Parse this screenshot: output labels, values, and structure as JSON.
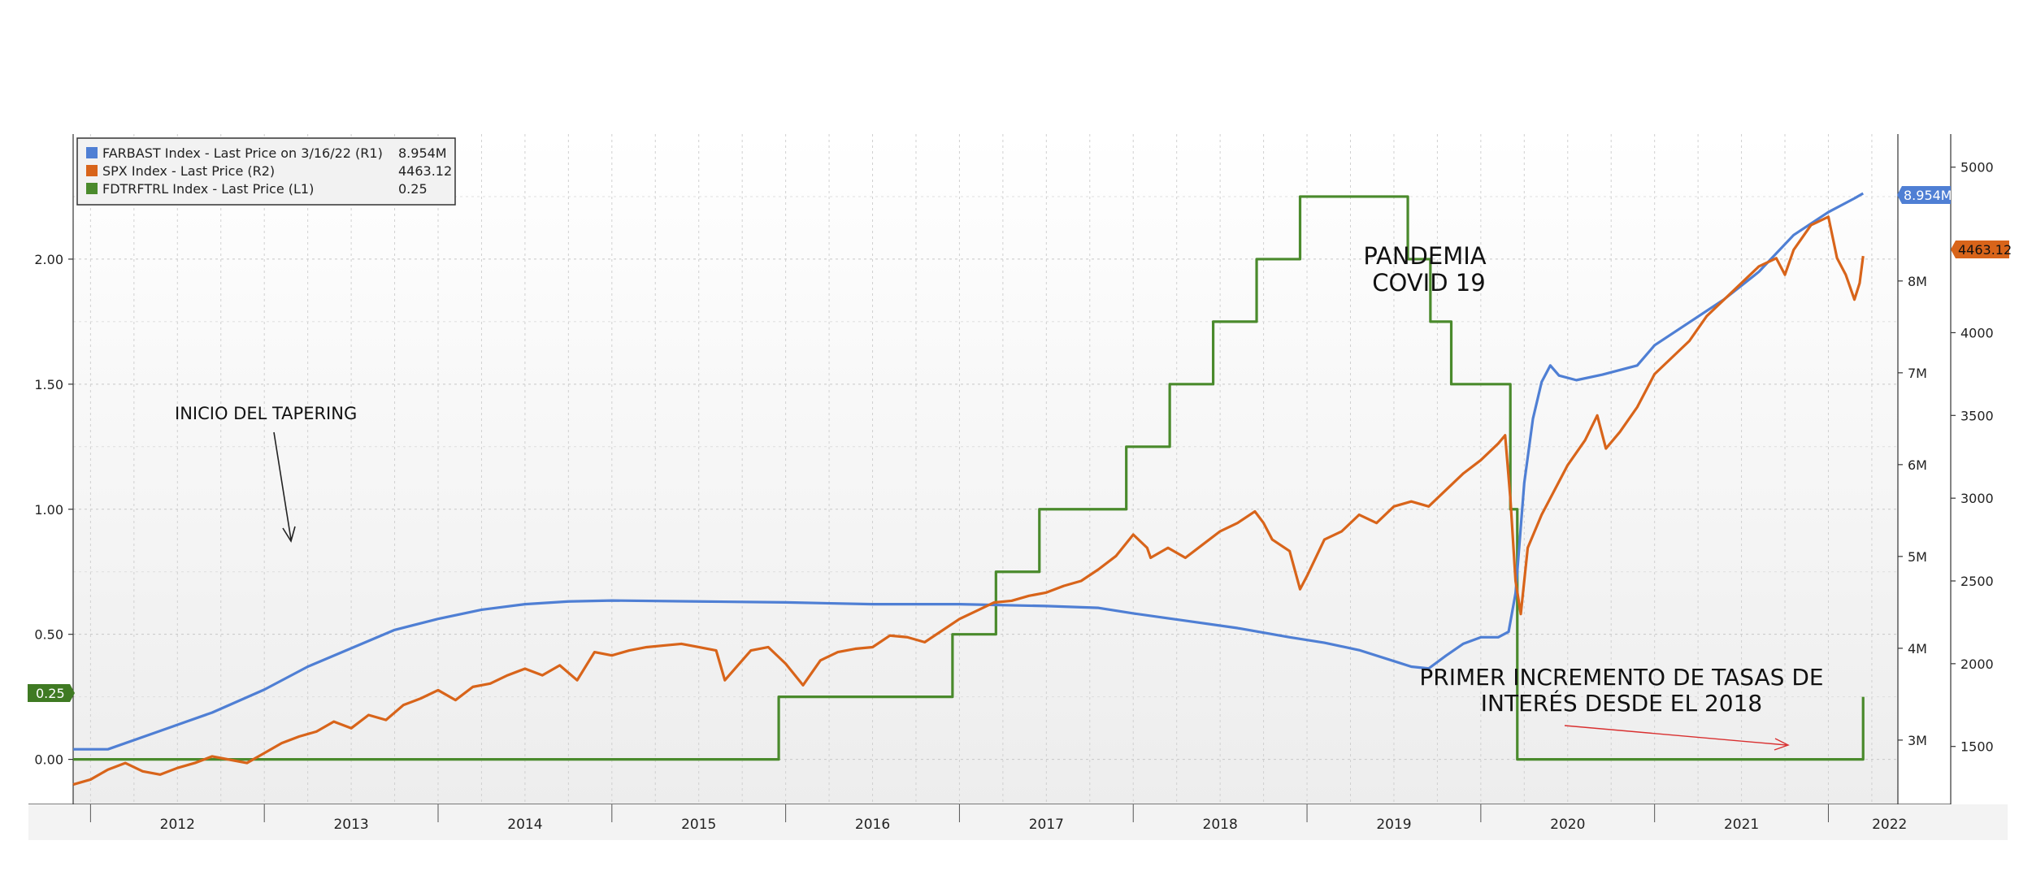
{
  "chart_data": {
    "type": "line",
    "grid": true,
    "legend_placement": "top-left",
    "x_axis": {
      "range": [
        2011.9,
        2022.4
      ],
      "tick_labels": [
        "2012",
        "2013",
        "2014",
        "2015",
        "2016",
        "2017",
        "2018",
        "2019",
        "2020",
        "2021",
        "2022"
      ]
    },
    "axes": {
      "L1": {
        "range": [
          -0.18,
          2.5
        ],
        "tick_values": [
          0.0,
          0.5,
          1.0,
          1.5,
          2.0
        ],
        "tick_labels": [
          "0.00",
          "0.50",
          "1.00",
          "1.50",
          "2.00"
        ]
      },
      "R1": {
        "range": [
          2.3,
          9.6
        ],
        "tick_values": [
          3,
          4,
          5,
          6,
          7,
          8
        ],
        "tick_labels": [
          "3M",
          "4M",
          "5M",
          "6M",
          "7M",
          "8M"
        ]
      },
      "R2": {
        "range": [
          1150,
          5200
        ],
        "tick_values": [
          1500,
          2000,
          2500,
          3000,
          3500,
          4000,
          4500,
          5000
        ],
        "tick_labels": [
          "1500",
          "2000",
          "2500",
          "3000",
          "3500",
          "4000",
          "4500",
          "5000"
        ]
      }
    },
    "legend": [
      {
        "label": "FARBAST Index - Last Price on 3/16/22 (R1)",
        "value": "8.954M",
        "color": "#4f7fd4"
      },
      {
        "label": "SPX Index - Last Price (R2)",
        "value": "4463.12",
        "color": "#d8641a"
      },
      {
        "label": "FDTRFTRL Index - Last Price (L1)",
        "value": "0.25",
        "color": "#4a8a2c"
      }
    ],
    "last_value_labels": {
      "farbast": "8.954M",
      "spx": "4463.12",
      "fdtr": "0.25"
    },
    "annotations": {
      "tapering": "INICIO DEL TAPERING",
      "pandemic_line1": "PANDEMIA",
      "pandemic_line2": "COVID 19",
      "hike_line1": "PRIMER INCREMENTO DE TASAS DE",
      "hike_line2": "INTERÉS DESDE EL 2018"
    },
    "series": [
      {
        "name": "FDTRFTRL Index - Last Price (L1)",
        "axis": "L1",
        "color": "#4a8a2c",
        "step": true,
        "points": [
          [
            2011.9,
            0.0
          ],
          [
            2015.96,
            0.25
          ],
          [
            2016.96,
            0.5
          ],
          [
            2017.21,
            0.75
          ],
          [
            2017.46,
            1.0
          ],
          [
            2017.96,
            1.25
          ],
          [
            2018.21,
            1.5
          ],
          [
            2018.46,
            1.75
          ],
          [
            2018.71,
            2.0
          ],
          [
            2018.96,
            2.25
          ],
          [
            2019.58,
            2.0
          ],
          [
            2019.71,
            1.75
          ],
          [
            2019.83,
            1.5
          ],
          [
            2020.17,
            1.0
          ],
          [
            2020.21,
            0.0
          ],
          [
            2022.2,
            0.25
          ]
        ]
      },
      {
        "name": "FARBAST Index - Last Price on 3/16/22 (R1)",
        "axis": "R1",
        "color": "#4f7fd4",
        "points": [
          [
            2011.9,
            2.9
          ],
          [
            2012.1,
            2.9
          ],
          [
            2012.4,
            3.1
          ],
          [
            2012.7,
            3.3
          ],
          [
            2013.0,
            3.55
          ],
          [
            2013.25,
            3.8
          ],
          [
            2013.5,
            4.0
          ],
          [
            2013.75,
            4.2
          ],
          [
            2014.0,
            4.32
          ],
          [
            2014.25,
            4.42
          ],
          [
            2014.5,
            4.48
          ],
          [
            2014.75,
            4.51
          ],
          [
            2015.0,
            4.52
          ],
          [
            2015.5,
            4.51
          ],
          [
            2016.0,
            4.5
          ],
          [
            2016.5,
            4.48
          ],
          [
            2017.0,
            4.48
          ],
          [
            2017.5,
            4.46
          ],
          [
            2017.8,
            4.44
          ],
          [
            2018.0,
            4.38
          ],
          [
            2018.3,
            4.3
          ],
          [
            2018.6,
            4.22
          ],
          [
            2018.9,
            4.12
          ],
          [
            2019.1,
            4.06
          ],
          [
            2019.3,
            3.98
          ],
          [
            2019.5,
            3.86
          ],
          [
            2019.6,
            3.8
          ],
          [
            2019.7,
            3.78
          ],
          [
            2019.8,
            3.92
          ],
          [
            2019.9,
            4.05
          ],
          [
            2020.0,
            4.12
          ],
          [
            2020.1,
            4.12
          ],
          [
            2020.16,
            4.18
          ],
          [
            2020.2,
            4.6
          ],
          [
            2020.25,
            5.8
          ],
          [
            2020.3,
            6.5
          ],
          [
            2020.35,
            6.9
          ],
          [
            2020.4,
            7.08
          ],
          [
            2020.45,
            6.97
          ],
          [
            2020.55,
            6.92
          ],
          [
            2020.7,
            6.98
          ],
          [
            2020.9,
            7.08
          ],
          [
            2021.0,
            7.3
          ],
          [
            2021.2,
            7.55
          ],
          [
            2021.4,
            7.8
          ],
          [
            2021.6,
            8.1
          ],
          [
            2021.8,
            8.5
          ],
          [
            2022.0,
            8.75
          ],
          [
            2022.15,
            8.9
          ],
          [
            2022.2,
            8.954
          ]
        ]
      },
      {
        "name": "SPX Index - Last Price (R2)",
        "axis": "R2",
        "color": "#d8641a",
        "points": [
          [
            2011.9,
            1270
          ],
          [
            2012.0,
            1300
          ],
          [
            2012.1,
            1360
          ],
          [
            2012.2,
            1400
          ],
          [
            2012.3,
            1350
          ],
          [
            2012.4,
            1330
          ],
          [
            2012.5,
            1370
          ],
          [
            2012.6,
            1400
          ],
          [
            2012.7,
            1440
          ],
          [
            2012.8,
            1420
          ],
          [
            2012.9,
            1400
          ],
          [
            2013.0,
            1460
          ],
          [
            2013.1,
            1520
          ],
          [
            2013.2,
            1560
          ],
          [
            2013.3,
            1590
          ],
          [
            2013.4,
            1650
          ],
          [
            2013.5,
            1610
          ],
          [
            2013.6,
            1690
          ],
          [
            2013.7,
            1660
          ],
          [
            2013.8,
            1750
          ],
          [
            2013.9,
            1790
          ],
          [
            2014.0,
            1840
          ],
          [
            2014.1,
            1780
          ],
          [
            2014.2,
            1860
          ],
          [
            2014.3,
            1880
          ],
          [
            2014.4,
            1930
          ],
          [
            2014.5,
            1970
          ],
          [
            2014.6,
            1930
          ],
          [
            2014.7,
            1990
          ],
          [
            2014.8,
            1900
          ],
          [
            2014.9,
            2070
          ],
          [
            2015.0,
            2050
          ],
          [
            2015.1,
            2080
          ],
          [
            2015.2,
            2100
          ],
          [
            2015.3,
            2110
          ],
          [
            2015.4,
            2120
          ],
          [
            2015.5,
            2100
          ],
          [
            2015.6,
            2080
          ],
          [
            2015.65,
            1900
          ],
          [
            2015.8,
            2080
          ],
          [
            2015.9,
            2100
          ],
          [
            2016.0,
            2000
          ],
          [
            2016.1,
            1870
          ],
          [
            2016.2,
            2020
          ],
          [
            2016.3,
            2070
          ],
          [
            2016.4,
            2090
          ],
          [
            2016.5,
            2100
          ],
          [
            2016.6,
            2170
          ],
          [
            2016.7,
            2160
          ],
          [
            2016.8,
            2130
          ],
          [
            2016.9,
            2200
          ],
          [
            2017.0,
            2270
          ],
          [
            2017.1,
            2320
          ],
          [
            2017.2,
            2370
          ],
          [
            2017.3,
            2380
          ],
          [
            2017.4,
            2410
          ],
          [
            2017.5,
            2430
          ],
          [
            2017.6,
            2470
          ],
          [
            2017.7,
            2500
          ],
          [
            2017.8,
            2570
          ],
          [
            2017.9,
            2650
          ],
          [
            2018.0,
            2780
          ],
          [
            2018.08,
            2700
          ],
          [
            2018.1,
            2640
          ],
          [
            2018.2,
            2700
          ],
          [
            2018.3,
            2640
          ],
          [
            2018.4,
            2720
          ],
          [
            2018.5,
            2800
          ],
          [
            2018.6,
            2850
          ],
          [
            2018.7,
            2920
          ],
          [
            2018.75,
            2850
          ],
          [
            2018.8,
            2750
          ],
          [
            2018.9,
            2680
          ],
          [
            2018.96,
            2450
          ],
          [
            2019.0,
            2530
          ],
          [
            2019.1,
            2750
          ],
          [
            2019.2,
            2800
          ],
          [
            2019.3,
            2900
          ],
          [
            2019.4,
            2850
          ],
          [
            2019.5,
            2950
          ],
          [
            2019.6,
            2980
          ],
          [
            2019.7,
            2950
          ],
          [
            2019.8,
            3050
          ],
          [
            2019.9,
            3150
          ],
          [
            2020.0,
            3230
          ],
          [
            2020.1,
            3330
          ],
          [
            2020.14,
            3380
          ],
          [
            2020.17,
            3000
          ],
          [
            2020.2,
            2500
          ],
          [
            2020.23,
            2300
          ],
          [
            2020.27,
            2700
          ],
          [
            2020.35,
            2900
          ],
          [
            2020.45,
            3100
          ],
          [
            2020.5,
            3200
          ],
          [
            2020.6,
            3350
          ],
          [
            2020.67,
            3500
          ],
          [
            2020.72,
            3300
          ],
          [
            2020.8,
            3400
          ],
          [
            2020.9,
            3550
          ],
          [
            2021.0,
            3750
          ],
          [
            2021.1,
            3850
          ],
          [
            2021.2,
            3950
          ],
          [
            2021.3,
            4100
          ],
          [
            2021.4,
            4200
          ],
          [
            2021.5,
            4300
          ],
          [
            2021.6,
            4400
          ],
          [
            2021.7,
            4450
          ],
          [
            2021.75,
            4350
          ],
          [
            2021.8,
            4500
          ],
          [
            2021.9,
            4650
          ],
          [
            2022.0,
            4700
          ],
          [
            2022.05,
            4450
          ],
          [
            2022.1,
            4350
          ],
          [
            2022.15,
            4200
          ],
          [
            2022.18,
            4300
          ],
          [
            2022.2,
            4463
          ]
        ]
      }
    ]
  }
}
